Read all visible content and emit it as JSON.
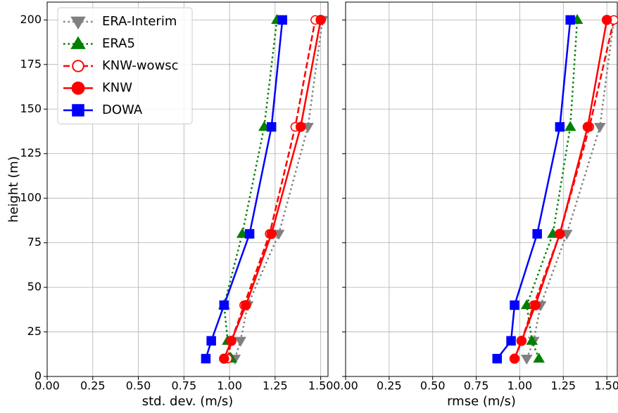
{
  "chart_data": [
    {
      "type": "line",
      "xlabel": "std. dev. (m/s)",
      "ylabel": "height (m)",
      "y": [
        10,
        20,
        40,
        80,
        140,
        200
      ],
      "xlim": [
        0,
        1.54
      ],
      "ylim": [
        0,
        210
      ],
      "xticks": [
        {
          "value": 0,
          "label": "0.00"
        },
        {
          "value": 0.25,
          "label": "0.25"
        },
        {
          "value": 0.5,
          "label": "0.50"
        },
        {
          "value": 0.75,
          "label": "0.75"
        },
        {
          "value": 1,
          "label": "1.00"
        },
        {
          "value": 1.25,
          "label": "1.25"
        },
        {
          "value": 1.5,
          "label": "1.50"
        }
      ],
      "yticks": [
        0,
        25,
        50,
        75,
        100,
        125,
        150,
        175,
        200
      ],
      "grid": true,
      "legend": "upper left",
      "series": [
        {
          "name": "ERA-Interim",
          "color": "#808080",
          "marker": "triangle-down",
          "linestyle": "dotted",
          "values": [
            1.03,
            1.06,
            1.1,
            1.27,
            1.43,
            1.51
          ]
        },
        {
          "name": "ERA5",
          "color": "#008000",
          "marker": "triangle-up",
          "linestyle": "dotted",
          "values": [
            1.01,
            0.99,
            0.97,
            1.07,
            1.19,
            1.26
          ]
        },
        {
          "name": "KNW-wowsc",
          "color": "#ff0000",
          "marker": "circle-open",
          "linestyle": "dashed",
          "values": [
            0.99,
            1.01,
            1.08,
            1.22,
            1.36,
            1.47
          ]
        },
        {
          "name": "KNW",
          "color": "#ff0000",
          "marker": "circle",
          "linestyle": "solid",
          "values": [
            0.97,
            1.01,
            1.09,
            1.23,
            1.39,
            1.5
          ]
        },
        {
          "name": "DOWA",
          "color": "#0000ff",
          "marker": "square",
          "linestyle": "solid",
          "values": [
            0.87,
            0.9,
            0.97,
            1.11,
            1.23,
            1.29
          ]
        }
      ]
    },
    {
      "type": "line",
      "xlabel": "rmse (m/s)",
      "y": [
        10,
        20,
        40,
        80,
        140,
        200
      ],
      "xlim": [
        0,
        1.56
      ],
      "ylim": [
        0,
        210
      ],
      "xticks": [
        {
          "value": 0,
          "label": "0.00"
        },
        {
          "value": 0.25,
          "label": "0.25"
        },
        {
          "value": 0.5,
          "label": "0.50"
        },
        {
          "value": 0.75,
          "label": "0.75"
        },
        {
          "value": 1,
          "label": "1.00"
        },
        {
          "value": 1.25,
          "label": "1.25"
        },
        {
          "value": 1.5,
          "label": "1.50"
        }
      ],
      "yticks": [
        0,
        25,
        50,
        75,
        100,
        125,
        150,
        175,
        200
      ],
      "grid": true,
      "show_ytick_labels": false,
      "series": [
        {
          "color": "#808080",
          "marker": "triangle-down",
          "linestyle": "dotted",
          "values": [
            1.04,
            1.08,
            1.12,
            1.27,
            1.46,
            1.54
          ]
        },
        {
          "color": "#008000",
          "marker": "triangle-up",
          "linestyle": "dotted",
          "values": [
            1.11,
            1.07,
            1.04,
            1.19,
            1.29,
            1.33
          ]
        },
        {
          "color": "#ff0000",
          "marker": "circle-open",
          "linestyle": "dashed",
          "values": [
            0.97,
            1.01,
            1.08,
            1.23,
            1.4,
            1.54
          ]
        },
        {
          "color": "#ff0000",
          "marker": "circle",
          "linestyle": "solid",
          "values": [
            0.97,
            1.01,
            1.09,
            1.23,
            1.39,
            1.5
          ]
        },
        {
          "color": "#0000ff",
          "marker": "square",
          "linestyle": "solid",
          "values": [
            0.87,
            0.95,
            0.97,
            1.1,
            1.23,
            1.29
          ]
        }
      ]
    }
  ]
}
